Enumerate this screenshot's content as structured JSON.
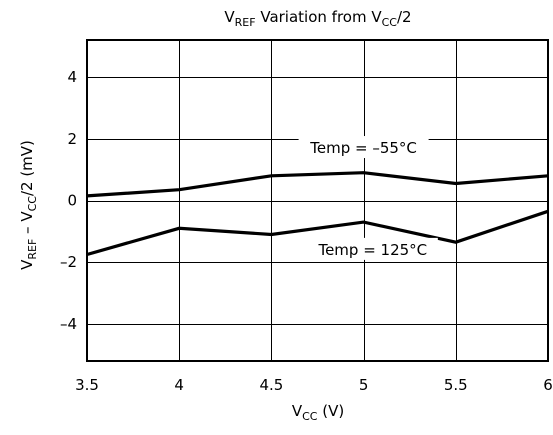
{
  "chart_data": {
    "type": "line",
    "title": {
      "main": "V",
      "sub": "REF",
      "rest": " Variation from V",
      "sub2": "CC",
      "end": "/2"
    },
    "xlabel": {
      "main": "V",
      "sub": "CC",
      "rest": " (V)"
    },
    "ylabel": {
      "main": "V",
      "sub": "REF",
      "mid": " – V",
      "sub2": "CC",
      "end": "/2 (mV)"
    },
    "xlim": [
      3.5,
      6
    ],
    "ylim": [
      -5.2,
      5.2
    ],
    "x_ticks": [
      3.5,
      4,
      4.5,
      5,
      5.5,
      6
    ],
    "x_tick_labels": [
      "3.5",
      "4",
      "4.5",
      "5",
      "5.5",
      "6"
    ],
    "y_ticks": [
      4,
      2,
      0,
      -2,
      -4
    ],
    "y_tick_labels": [
      "4",
      "2",
      "0",
      "–2",
      "–4"
    ],
    "grid": true,
    "series": [
      {
        "name": "Temp = –55°C",
        "x": [
          3.5,
          4,
          4.5,
          5,
          5.5,
          6
        ],
        "y": [
          0.15,
          0.35,
          0.8,
          0.9,
          0.55,
          0.8
        ],
        "annotation": {
          "x": 5,
          "y": 1.7
        }
      },
      {
        "name": "Temp = 125°C",
        "x": [
          3.5,
          4,
          4.5,
          5,
          5.5,
          6
        ],
        "y": [
          -1.75,
          -0.9,
          -1.1,
          -0.7,
          -1.35,
          -0.35
        ],
        "annotation": {
          "x": 5.05,
          "y": -1.6
        }
      }
    ]
  }
}
